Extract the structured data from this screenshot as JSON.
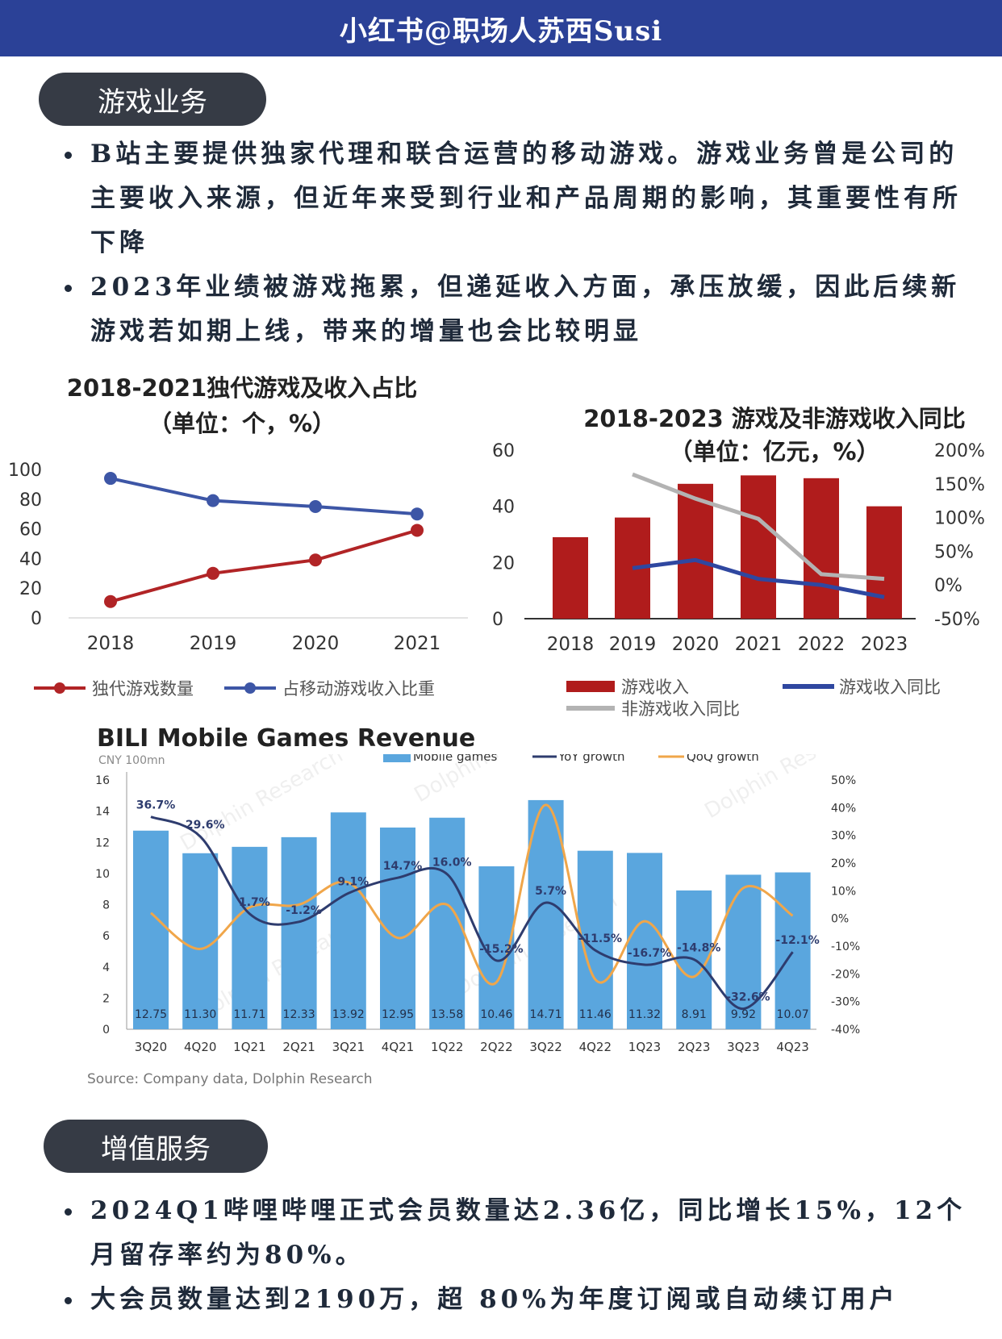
{
  "header": {
    "title": "小红书@职场人苏西Susi"
  },
  "section_game": {
    "title": "游戏业务",
    "bullets": [
      "B站主要提供独家代理和联合运营的移动游戏。游戏业务曾是公司的主要收入来源，但近年来受到行业和产品周期的影响，其重要性有所下降",
      "2023年业绩被游戏拖累，但递延收入方面，承压放缓，因此后续新游戏若如期上线，带来的增量也会比较明显"
    ]
  },
  "section_vas": {
    "title": "增值服务",
    "bullets": [
      "2024Q1哔哩哔哩正式会员数量达2.36亿，同比增长15%，12个月留存率约为80%。",
      "大会员数量达到2190万，超 80%为年度订阅或自动续订用户"
    ]
  },
  "chart_data": [
    {
      "type": "line",
      "title": "2018-2021独代游戏及收入占比",
      "subtitle": "（单位：个，%）",
      "categories": [
        "2018",
        "2019",
        "2020",
        "2021"
      ],
      "ylim": [
        0,
        100
      ],
      "yticks": [
        "100",
        "80",
        "60",
        "40",
        "20",
        "0"
      ],
      "series": [
        {
          "name": "独代游戏数量",
          "color": "#b12426",
          "values": [
            11,
            30,
            39,
            59
          ]
        },
        {
          "name": "占移动游戏收入比重",
          "color": "#3d56a6",
          "values": [
            94,
            79,
            75,
            70
          ]
        }
      ],
      "legend": "bottom"
    },
    {
      "type": "bar",
      "title": "2018-2023 游戏及非游戏收入同比",
      "subtitle": "（单位：亿元，%）",
      "categories": [
        "2018",
        "2019",
        "2020",
        "2021",
        "2022",
        "2023"
      ],
      "ylim": [
        0,
        60
      ],
      "yticks": [
        "60",
        "40",
        "20",
        "0"
      ],
      "y2lim": [
        -50,
        200
      ],
      "y2ticks": [
        "200%",
        "150%",
        "100%",
        "50%",
        "0%",
        "-50%"
      ],
      "series": [
        {
          "name": "游戏收入",
          "type": "bar",
          "color": "#b01c1c",
          "values": [
            29,
            36,
            48,
            51,
            50,
            40
          ]
        },
        {
          "name": "游戏收入同比",
          "type": "line",
          "axis": "right",
          "color": "#2f47a0",
          "values": [
            null,
            25,
            37,
            9,
            0,
            -18
          ]
        },
        {
          "name": "非游戏收入同比",
          "type": "line",
          "axis": "right",
          "color": "#b3b3b3",
          "values": [
            null,
            164,
            128,
            98,
            16,
            9
          ]
        }
      ],
      "legend": "bottom"
    },
    {
      "type": "bar",
      "title": "BILI Mobile Games Revenue",
      "unit": "CNY 100mn",
      "source": "Source: Company data, Dolphin Research",
      "watermark": "Dolphin Research",
      "categories": [
        "3Q20",
        "4Q20",
        "1Q21",
        "2Q21",
        "3Q21",
        "4Q21",
        "1Q22",
        "2Q22",
        "3Q22",
        "4Q22",
        "1Q23",
        "2Q23",
        "3Q23",
        "4Q23"
      ],
      "ylim": [
        0,
        16
      ],
      "yticks": [
        "16",
        "14",
        "12",
        "10",
        "8",
        "6",
        "4",
        "2",
        "0"
      ],
      "y2lim": [
        -40,
        50
      ],
      "y2ticks": [
        "50%",
        "40%",
        "30%",
        "20%",
        "10%",
        "0%",
        "-10%",
        "-20%",
        "-30%",
        "-40%"
      ],
      "series": [
        {
          "name": "Mobile games",
          "type": "bar",
          "color": "#5aa6de",
          "values": [
            12.75,
            11.3,
            11.71,
            12.33,
            13.92,
            12.95,
            13.58,
            10.46,
            14.71,
            11.46,
            11.32,
            8.91,
            9.92,
            10.07
          ],
          "labels": [
            "12.75",
            "11.30",
            "11.71",
            "12.33",
            "13.92",
            "12.95",
            "13.58",
            "10.46",
            "14.71",
            "11.46",
            "11.32",
            "8.91",
            "9.92",
            "10.07"
          ]
        },
        {
          "name": "YoY growth",
          "type": "line",
          "axis": "right",
          "color": "#2e3c6e",
          "values": [
            36.7,
            29.6,
            1.7,
            -1.2,
            9.1,
            14.7,
            16.0,
            -15.2,
            5.7,
            -11.5,
            -16.7,
            -14.8,
            -32.6,
            -12.1
          ],
          "labels": [
            "36.7%",
            "29.6%",
            "1.7%",
            "-1.2%",
            "9.1%",
            "14.7%",
            "16.0%",
            "-15.2%",
            "5.7%",
            "-11.5%",
            "-16.7%",
            "-14.8%",
            "-32.6%",
            "-12.1%"
          ]
        },
        {
          "name": "QoQ growth",
          "type": "line",
          "axis": "right",
          "color": "#f0a64a",
          "values": [
            2,
            -11,
            4,
            5,
            13,
            -7,
            5,
            -23,
            41,
            -22,
            -1,
            -21,
            11,
            1
          ]
        }
      ],
      "legend": "top"
    }
  ]
}
